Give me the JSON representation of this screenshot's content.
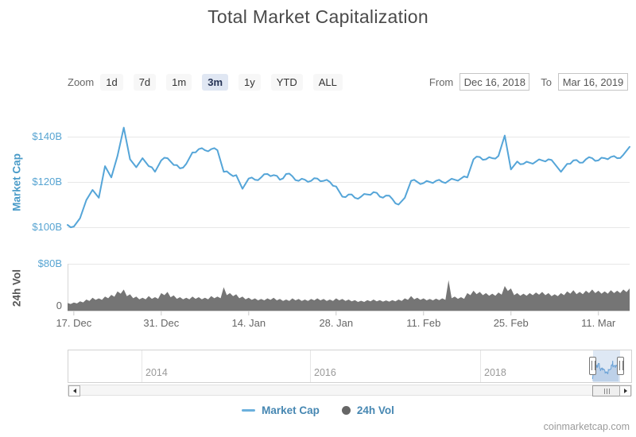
{
  "title": "Total Market Capitalization",
  "toolbar": {
    "zoom_label": "Zoom",
    "zoom_buttons": [
      {
        "label": "1d",
        "selected": false
      },
      {
        "label": "7d",
        "selected": false
      },
      {
        "label": "1m",
        "selected": false
      },
      {
        "label": "3m",
        "selected": true
      },
      {
        "label": "1y",
        "selected": false
      },
      {
        "label": "YTD",
        "selected": false
      },
      {
        "label": "ALL",
        "selected": false
      }
    ],
    "from_label": "From",
    "from_value": "Dec 16, 2018",
    "to_label": "To",
    "to_value": "Mar 16, 2019"
  },
  "main_chart": {
    "axis_title": "Market Cap",
    "yticks": [
      {
        "label": "$140B",
        "value": 140,
        "color": "#57a4d2"
      },
      {
        "label": "$120B",
        "value": 120,
        "color": "#57a4d2"
      },
      {
        "label": "$100B",
        "value": 100,
        "color": "#57a4d2"
      }
    ]
  },
  "vol_chart": {
    "axis_title": "24h Vol",
    "yticks": [
      {
        "label": "$80B",
        "value": 80,
        "color": "#57a4d2"
      },
      {
        "label": "0",
        "value": 0,
        "color": "#666666"
      }
    ]
  },
  "xaxis": {
    "labels": [
      {
        "label": "17. Dec",
        "day": 1
      },
      {
        "label": "31. Dec",
        "day": 15
      },
      {
        "label": "14. Jan",
        "day": 29
      },
      {
        "label": "28. Jan",
        "day": 43
      },
      {
        "label": "11. Feb",
        "day": 57
      },
      {
        "label": "25. Feb",
        "day": 71
      },
      {
        "label": "11. Mar",
        "day": 85
      }
    ]
  },
  "navigator": {
    "years": [
      {
        "label": "2014",
        "x": 177
      },
      {
        "label": "2016",
        "x": 389
      },
      {
        "label": "2018",
        "x": 603
      }
    ],
    "selection": {
      "from": "Dec 16, 2018",
      "to": "Mar 16, 2019"
    }
  },
  "legend": {
    "items": [
      {
        "label": "Market Cap",
        "marker": "line",
        "color": "#6bb0dd"
      },
      {
        "label": "24h Vol",
        "marker": "circle",
        "color": "#666666"
      }
    ]
  },
  "credit": "coinmarketcap.com",
  "chart_data": {
    "type": "line",
    "title": "Total Market Capitalization",
    "x_start": "2018-12-16",
    "x_end": "2019-03-16",
    "x_step_days": 1,
    "yaxes": [
      {
        "name": "Market Cap",
        "ticks": [
          100,
          120,
          140
        ],
        "unit": "USD billion"
      },
      {
        "name": "24h Vol",
        "ticks": [
          0,
          80
        ],
        "unit": "USD billion"
      }
    ],
    "series": [
      {
        "name": "Market Cap",
        "type": "line",
        "color": "#55a5d8",
        "unit": "USD billion",
        "values": [
          101,
          100.3,
          104,
          112,
          116.5,
          113,
          127,
          122,
          131.5,
          144,
          130,
          126.5,
          130.5,
          127,
          124.5,
          129.5,
          130.5,
          127.5,
          126,
          128,
          133,
          134.5,
          134,
          134.5,
          134,
          124.5,
          123.5,
          123,
          117,
          121.5,
          121,
          122,
          123.5,
          123,
          121,
          123.5,
          122.5,
          120.5,
          121,
          120.5,
          121.5,
          120.5,
          120,
          118,
          113.5,
          114.5,
          113,
          113.5,
          114.5,
          115.5,
          113.5,
          114,
          112.5,
          110,
          113,
          120.5,
          120,
          119.5,
          120,
          120.5,
          120,
          120.5,
          121,
          121.5,
          122,
          130,
          131,
          130,
          130.5,
          131.5,
          140.5,
          125.5,
          129,
          128,
          128.5,
          129,
          129.5,
          130,
          128,
          124.5,
          128,
          129.5,
          128.5,
          130,
          130.5,
          129.5,
          130.5,
          131,
          130.5,
          132,
          135.5
        ]
      },
      {
        "name": "24h Vol",
        "type": "column",
        "color": "#757575",
        "unit": "USD billion",
        "values": [
          13,
          14,
          16,
          19,
          22,
          21,
          24,
          27,
          33,
          36,
          28,
          24,
          22,
          25,
          23,
          30,
          32,
          26,
          23,
          22,
          24,
          23,
          22,
          25,
          24,
          40,
          30,
          28,
          24,
          22,
          21,
          20,
          21,
          22,
          20,
          19,
          21,
          20,
          19,
          20,
          21,
          20,
          19,
          21,
          20,
          19,
          18,
          17,
          18,
          19,
          18,
          17.5,
          18,
          19,
          21,
          25,
          22,
          21,
          20,
          20.5,
          21,
          52,
          24,
          23,
          30,
          34,
          32,
          30,
          29,
          31,
          42,
          38,
          30,
          29,
          30,
          31,
          32,
          30,
          28,
          30,
          33,
          35,
          32,
          34,
          36,
          34,
          33,
          35,
          34,
          36,
          38
        ]
      }
    ]
  }
}
